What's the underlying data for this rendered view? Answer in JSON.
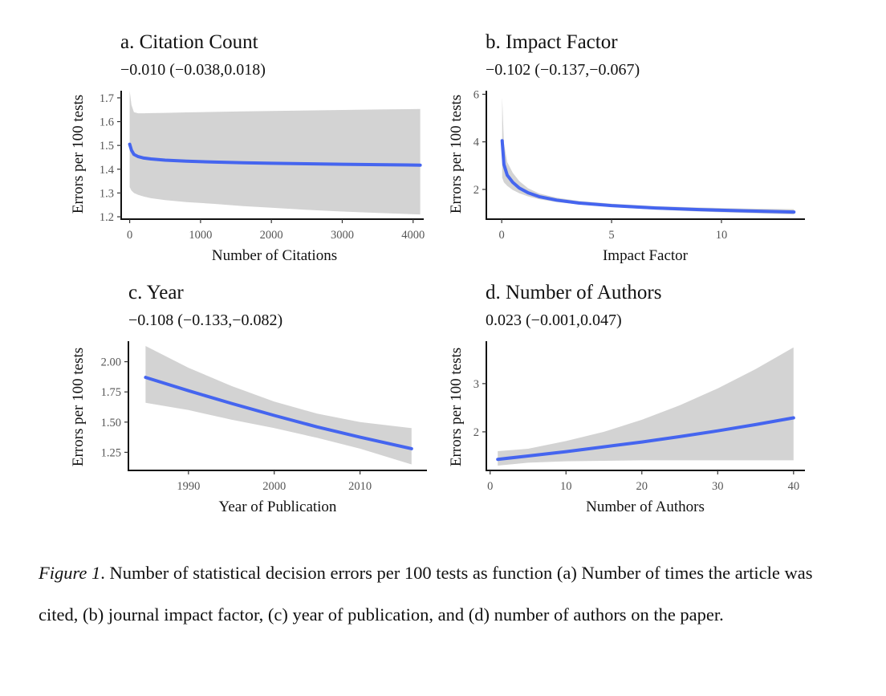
{
  "chart_data": [
    {
      "type": "line",
      "title": "a. Citation Count",
      "estimate": "−0.010 (−0.038,0.018)",
      "xlabel": "Number of Citations",
      "ylabel": "Errors per 100 tests",
      "xlim": [
        -120,
        4150
      ],
      "ylim": [
        1.19,
        1.73
      ],
      "xticks": [
        0,
        1000,
        2000,
        3000,
        4000
      ],
      "xtick_labels": [
        "0",
        "1000",
        "2000",
        "3000",
        "4000"
      ],
      "yticks": [
        1.2,
        1.3,
        1.4,
        1.5,
        1.6,
        1.7
      ],
      "ytick_labels": [
        "1.2",
        "1.3",
        "1.4",
        "1.5",
        "1.6",
        "1.7"
      ],
      "fit": {
        "x": [
          0,
          25,
          60,
          120,
          200,
          300,
          500,
          800,
          1200,
          1600,
          2000,
          2500,
          3000,
          3500,
          4100
        ],
        "y": [
          1.505,
          1.48,
          1.462,
          1.453,
          1.447,
          1.443,
          1.438,
          1.434,
          1.43,
          1.427,
          1.425,
          1.423,
          1.421,
          1.419,
          1.417
        ]
      },
      "band_lower": [
        1.325,
        1.31,
        1.3,
        1.292,
        1.285,
        1.278,
        1.27,
        1.262,
        1.254,
        1.245,
        1.238,
        1.229,
        1.222,
        1.216,
        1.21
      ],
      "band_upper": [
        1.73,
        1.67,
        1.64,
        1.635,
        1.635,
        1.636,
        1.637,
        1.639,
        1.641,
        1.643,
        1.645,
        1.647,
        1.649,
        1.651,
        1.653
      ]
    },
    {
      "type": "line",
      "title": "b. Impact Factor",
      "estimate": "−0.102 (−0.137,−0.067)",
      "xlabel": "Impact Factor",
      "ylabel": "Errors per 100 tests",
      "xlim": [
        -0.7,
        13.8
      ],
      "ylim": [
        0.75,
        6.15
      ],
      "xticks": [
        0,
        5,
        10
      ],
      "xtick_labels": [
        "0",
        "5",
        "10"
      ],
      "yticks": [
        2,
        4,
        6
      ],
      "ytick_labels": [
        "2",
        "4",
        "6"
      ],
      "fit": {
        "x": [
          0.02,
          0.1,
          0.25,
          0.5,
          0.8,
          1.2,
          1.7,
          2.5,
          3.5,
          5,
          7,
          9,
          11,
          13.3
        ],
        "y": [
          4.05,
          3.05,
          2.6,
          2.3,
          2.06,
          1.86,
          1.7,
          1.55,
          1.43,
          1.32,
          1.22,
          1.15,
          1.1,
          1.05
        ]
      },
      "band_lower": [
        2.5,
        2.3,
        2.15,
        1.98,
        1.84,
        1.71,
        1.59,
        1.47,
        1.37,
        1.26,
        1.15,
        1.07,
        1.01,
        0.95
      ],
      "band_upper": [
        5.9,
        3.95,
        3.15,
        2.7,
        2.35,
        2.05,
        1.83,
        1.65,
        1.52,
        1.4,
        1.3,
        1.24,
        1.2,
        1.17
      ]
    },
    {
      "type": "line",
      "title": "c. Year",
      "estimate": "−0.108 (−0.133,−0.082)",
      "xlabel": "Year of Publication",
      "ylabel": "Errors per 100 tests",
      "xlim": [
        1983,
        2017.8
      ],
      "ylim": [
        1.1,
        2.17
      ],
      "xticks": [
        1990,
        2000,
        2010
      ],
      "xtick_labels": [
        "1990",
        "2000",
        "2010"
      ],
      "yticks": [
        1.25,
        1.5,
        1.75,
        2.0
      ],
      "ytick_labels": [
        "1.25",
        "1.50",
        "1.75",
        "2.00"
      ],
      "fit": {
        "x": [
          1985,
          1990,
          1995,
          2000,
          2005,
          2010,
          2016
        ],
        "y": [
          1.87,
          1.76,
          1.655,
          1.555,
          1.46,
          1.375,
          1.28
        ]
      },
      "band_lower": [
        1.66,
        1.6,
        1.52,
        1.45,
        1.37,
        1.28,
        1.15
      ],
      "band_upper": [
        2.13,
        1.95,
        1.8,
        1.67,
        1.57,
        1.5,
        1.45
      ]
    },
    {
      "type": "line",
      "title": "d. Number of Authors",
      "estimate": "0.023 (−0.001,0.047)",
      "xlabel": "Number of Authors",
      "ylabel": "Errors per 100 tests",
      "xlim": [
        -0.5,
        41.5
      ],
      "ylim": [
        1.2,
        3.88
      ],
      "xticks": [
        0,
        10,
        20,
        30,
        40
      ],
      "xtick_labels": [
        "0",
        "10",
        "20",
        "30",
        "40"
      ],
      "yticks": [
        2,
        3
      ],
      "ytick_labels": [
        "2",
        "3"
      ],
      "fit": {
        "x": [
          1,
          5,
          10,
          15,
          20,
          25,
          30,
          35,
          40
        ],
        "y": [
          1.43,
          1.5,
          1.59,
          1.69,
          1.79,
          1.9,
          2.02,
          2.15,
          2.29
        ]
      },
      "band_lower": [
        1.3,
        1.36,
        1.39,
        1.4,
        1.41,
        1.41,
        1.41,
        1.41,
        1.41
      ],
      "band_upper": [
        1.6,
        1.65,
        1.81,
        2.0,
        2.25,
        2.55,
        2.9,
        3.3,
        3.75
      ]
    }
  ],
  "caption": {
    "label": "Figure 1",
    "text": ". Number of statistical decision errors per 100 tests as function (a) Number of times the article was cited, (b) journal impact factor, (c) year of publication, and (d) number of authors on the paper."
  },
  "colors": {
    "fit_line": "#4565ef",
    "band": "#d3d3d3",
    "axis": "#111111"
  }
}
